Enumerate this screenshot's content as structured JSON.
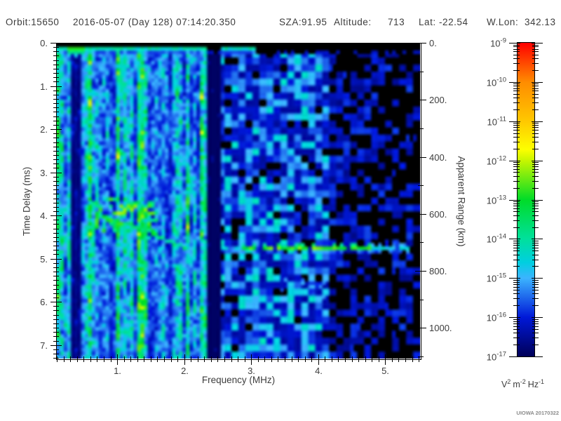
{
  "header": {
    "orbit": "Orbit:15650",
    "datetime": "2016-05-07 (Day 128) 07:14:20.350",
    "sza_label": "SZA:",
    "sza_value": "91.95",
    "altitude_label": "Altitude:",
    "altitude_value": "713",
    "lat_label": "Lat:",
    "lat_value": "-22.54",
    "wlon_label": "W.Lon:",
    "wlon_value": "342.13"
  },
  "watermark": "UIOWA 20170322",
  "chart_data": {
    "type": "heatmap",
    "xlabel": "Frequency (MHz)",
    "ylabel_left": "Time Delay (ms)",
    "ylabel_right": "Apparent Range (km)",
    "x_range_mhz": [
      0.089,
      5.53
    ],
    "y_range_ms": [
      0,
      7.33
    ],
    "right_axis_range_km": [
      0,
      1110
    ],
    "x_ticks": [
      {
        "v": 1,
        "label": "1."
      },
      {
        "v": 2,
        "label": "2."
      },
      {
        "v": 3,
        "label": "3."
      },
      {
        "v": 4,
        "label": "4."
      },
      {
        "v": 5,
        "label": "5."
      }
    ],
    "x_minor_step_mhz": 0.1,
    "y_ticks": [
      {
        "v": 0,
        "label": "0."
      },
      {
        "v": 1,
        "label": "1."
      },
      {
        "v": 2,
        "label": "2."
      },
      {
        "v": 3,
        "label": "3."
      },
      {
        "v": 4,
        "label": "4."
      },
      {
        "v": 5,
        "label": "5."
      },
      {
        "v": 6,
        "label": "6."
      },
      {
        "v": 7,
        "label": "7."
      }
    ],
    "y_minor_step_ms": 0.1,
    "right_ticks": [
      {
        "v": 0,
        "label": "0."
      },
      {
        "v": 200,
        "label": "200."
      },
      {
        "v": 400,
        "label": "400."
      },
      {
        "v": 600,
        "label": "600."
      },
      {
        "v": 800,
        "label": "800."
      },
      {
        "v": 1000,
        "label": "1000."
      }
    ],
    "right_minor_step_km": 100,
    "colorbar": {
      "scale": "log",
      "max": "1e-9",
      "min": "1e-17",
      "tick_exponents": [
        -9,
        -10,
        -11,
        -12,
        -13,
        -14,
        -15,
        -16,
        -17
      ],
      "unit_parts": [
        {
          "base": "V",
          "exp": "2"
        },
        {
          "base": "m",
          "exp": "-2"
        },
        {
          "base": "Hz",
          "exp": "-1"
        }
      ],
      "gradient_stops": [
        {
          "pos": 0.0,
          "color": "#ff0000"
        },
        {
          "pos": 0.125,
          "color": "#ff8c00"
        },
        {
          "pos": 0.25,
          "color": "#ffc800"
        },
        {
          "pos": 0.34,
          "color": "#fdff00"
        },
        {
          "pos": 0.375,
          "color": "#c8f600"
        },
        {
          "pos": 0.5,
          "color": "#00dc28"
        },
        {
          "pos": 0.625,
          "color": "#00e09c"
        },
        {
          "pos": 0.7,
          "color": "#00cfe0"
        },
        {
          "pos": 0.75,
          "color": "#3cb4ff"
        },
        {
          "pos": 0.875,
          "color": "#0018d8"
        },
        {
          "pos": 1.0,
          "color": "#000058"
        }
      ]
    },
    "noise_regions": [
      {
        "f_mhz": [
          0.089,
          2.33
        ],
        "style": "fine vertical blue streaks with cyan flecks"
      },
      {
        "f_mhz": [
          2.53,
          4.2
        ],
        "style": "mottled blue blobs with black gaps"
      },
      {
        "f_mhz": [
          4.2,
          5.53
        ],
        "style": "sparse dark-blue blobs on black, density decreasing to the right"
      }
    ],
    "features": [
      {
        "id": "transmit-blanking-band",
        "type": "black_row_band",
        "t_ms": [
          0,
          0.12
        ]
      },
      {
        "id": "top-bright-line",
        "type": "bright_row",
        "t_ms": 0.17,
        "f_mhz": [
          0.089,
          2.8
        ],
        "color": "cyan",
        "green_spot_f_mhz": [
          0.22,
          0.38
        ]
      },
      {
        "id": "low-freq-dark-stripe",
        "type": "dark_column",
        "f_mhz": [
          0.29,
          0.44
        ]
      },
      {
        "id": "interference-bright-line",
        "type": "bright_column",
        "f_mhz": 1.33,
        "color": "cyan"
      },
      {
        "id": "blanked-frequency-channel",
        "type": "black_column",
        "f_mhz": [
          2.33,
          2.53
        ]
      },
      {
        "id": "ionospheric-echo-trace",
        "type": "blob_cluster",
        "f_mhz": [
          0.5,
          1.55
        ],
        "t_ms": [
          3.6,
          4.4
        ],
        "color": "green",
        "peak": {
          "f_mhz": [
            0.95,
            1.5
          ],
          "t_ms": [
            3.7,
            3.95
          ],
          "color": "yellow-green"
        }
      },
      {
        "id": "echo-cusp",
        "type": "descending_trace",
        "from_f_mhz": 1.45,
        "from_t_ms": 4.35,
        "to_f_mhz": 1.95,
        "to_t_ms": 4.73
      },
      {
        "id": "surface-reflection-line",
        "type": "bright_row",
        "t_ms": 4.73,
        "f_mhz": [
          1.8,
          5.45
        ],
        "bright_f_mhz": [
          2.85,
          4.75
        ],
        "color": "green"
      },
      {
        "id": "diffuse-glow",
        "type": "soft_patch",
        "f_mhz": [
          3.4,
          4.1
        ],
        "t_ms": [
          5.4,
          5.85
        ]
      }
    ]
  }
}
